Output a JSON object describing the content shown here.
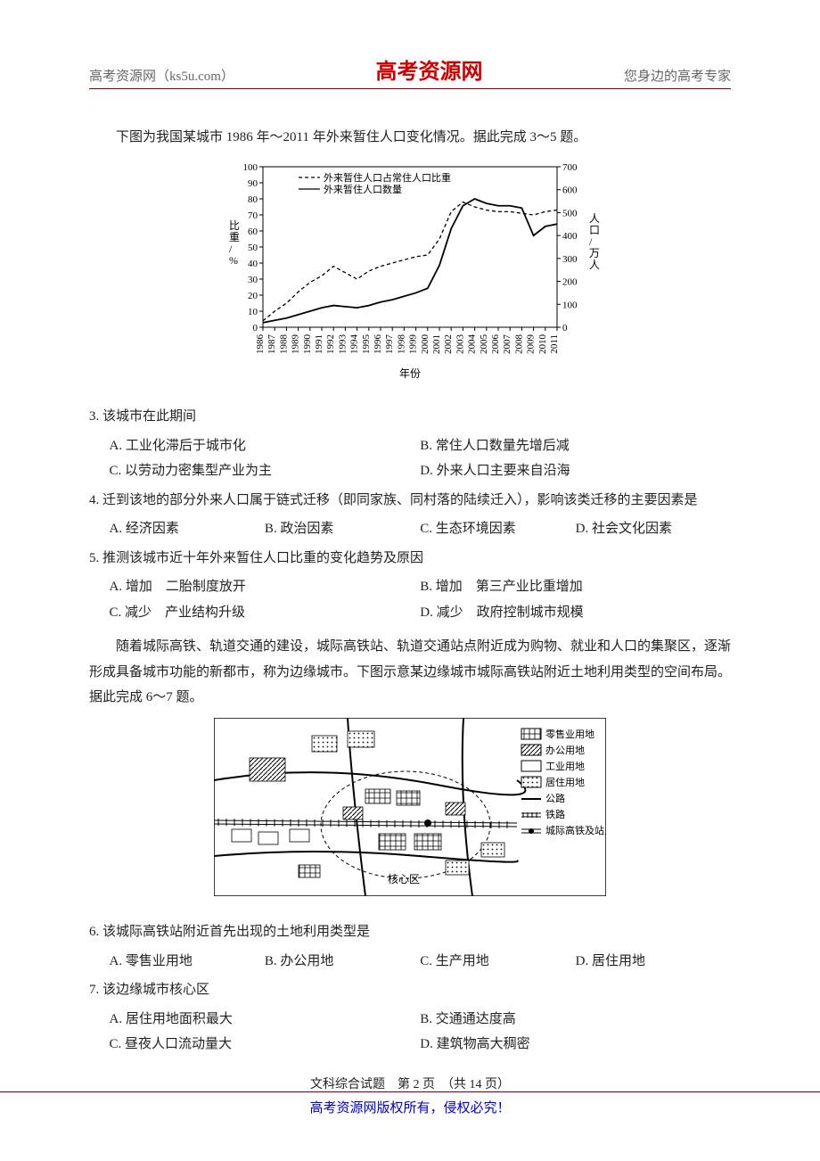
{
  "header": {
    "left": "高考资源网（ks5u.com）",
    "center": "高考资源网",
    "right": "您身边的高考专家"
  },
  "intro1": "下图为我国某城市 1986 年～2011 年外来暂住人口变化情况。据此完成 3～5 题。",
  "chart": {
    "type": "dual-axis-line",
    "background_color": "#ffffff",
    "axis_color": "#000000",
    "grid_color": "#ffffff",
    "font_size": 11,
    "left_axis": {
      "label": "比重/%",
      "min": 0,
      "max": 100,
      "step": 10,
      "ticks": [
        0,
        10,
        20,
        30,
        40,
        50,
        60,
        70,
        80,
        90,
        100
      ]
    },
    "right_axis": {
      "label": "人口/万人",
      "min": 0,
      "max": 700,
      "step": 100,
      "ticks": [
        0,
        100,
        200,
        300,
        400,
        500,
        600,
        700
      ]
    },
    "x_axis": {
      "label": "年份",
      "ticks": [
        "1986",
        "1987",
        "1988",
        "1989",
        "1990",
        "1991",
        "1992",
        "1993",
        "1994",
        "1995",
        "1996",
        "1997",
        "1998",
        "1999",
        "2000",
        "2001",
        "2002",
        "2003",
        "2004",
        "2005",
        "2006",
        "2007",
        "2008",
        "2009",
        "2010",
        "2011"
      ]
    },
    "series": [
      {
        "name": "外来暂住人口占常住人口比重",
        "axis": "left",
        "dash": "4,3",
        "color": "#000000",
        "width": 1.3,
        "values": [
          4,
          10,
          15,
          22,
          28,
          32,
          38,
          34,
          30,
          35,
          38,
          40,
          42,
          44,
          45,
          55,
          72,
          78,
          75,
          73,
          72,
          72,
          71,
          70,
          72,
          73
        ]
      },
      {
        "name": "外来暂住人口数量",
        "axis": "right",
        "dash": "",
        "color": "#000000",
        "width": 1.8,
        "values": [
          20,
          30,
          40,
          55,
          70,
          85,
          95,
          90,
          85,
          95,
          110,
          120,
          135,
          150,
          170,
          270,
          430,
          530,
          560,
          540,
          530,
          530,
          520,
          400,
          440,
          450
        ]
      }
    ],
    "legend": {
      "items": [
        "外来暂住人口占常住人口比重",
        "外来暂住人口数量"
      ],
      "styles": [
        "dashed",
        "solid"
      ]
    }
  },
  "q3": {
    "stem": "3. 该城市在此期间",
    "opts": [
      "A. 工业化滞后于城市化",
      "B. 常住人口数量先增后减",
      "C. 以劳动力密集型产业为主",
      "D. 外来人口主要来自沿海"
    ]
  },
  "q4": {
    "stem": "4. 迁到该地的部分外来人口属于链式迁移（即同家族、同村落的陆续迁入），影响该类迁移的主要因素是",
    "opts": [
      "A. 经济因素",
      "B. 政治因素",
      "C. 生态环境因素",
      "D. 社会文化因素"
    ]
  },
  "q5": {
    "stem": "5. 推测该城市近十年外来暂住人口比重的变化趋势及原因",
    "opts": [
      "A. 增加　二胎制度放开",
      "B. 增加　第三产业比重增加",
      "C. 减少　产业结构升级",
      "D. 减少　政府控制城市规模"
    ]
  },
  "intro2": "随着城际高铁、轨道交通的建设，城际高铁站、轨道交通站点附近成为购物、就业和人口的集聚区，逐渐形成具备城市功能的新都市，称为边缘城市。下图示意某边缘城市城际高铁站附近土地利用类型的空间布局。据此完成 6～7 题。",
  "map": {
    "type": "schematic-map",
    "background_color": "#ffffff",
    "legend": [
      {
        "label": "零售业用地",
        "symbol": "grid",
        "color": "#000000"
      },
      {
        "label": "办公用地",
        "symbol": "hatch",
        "color": "#000000"
      },
      {
        "label": "工业用地",
        "symbol": "blank",
        "color": "#000000"
      },
      {
        "label": "居住用地",
        "symbol": "dots",
        "color": "#000000"
      },
      {
        "label": "公路",
        "symbol": "line",
        "color": "#000000"
      },
      {
        "label": "铁路",
        "symbol": "rail",
        "color": "#000000"
      },
      {
        "label": "城际高铁及站点",
        "symbol": "rail-dot",
        "color": "#000000"
      }
    ],
    "core_label": "核心区"
  },
  "q6": {
    "stem": "6. 该城际高铁站附近首先出现的土地利用类型是",
    "opts": [
      "A. 零售业用地",
      "B. 办公用地",
      "C. 生产用地",
      "D. 居住用地"
    ]
  },
  "q7": {
    "stem": "7. 该边缘城市核心区",
    "opts": [
      "A. 居住用地面积最大",
      "B. 交通通达度高",
      "C. 昼夜人口流动量大",
      "D. 建筑物高大稠密"
    ]
  },
  "pagenum": "文科综合试题　第 2 页　（共 14 页）",
  "footer": "高考资源网版权所有，侵权必究！"
}
